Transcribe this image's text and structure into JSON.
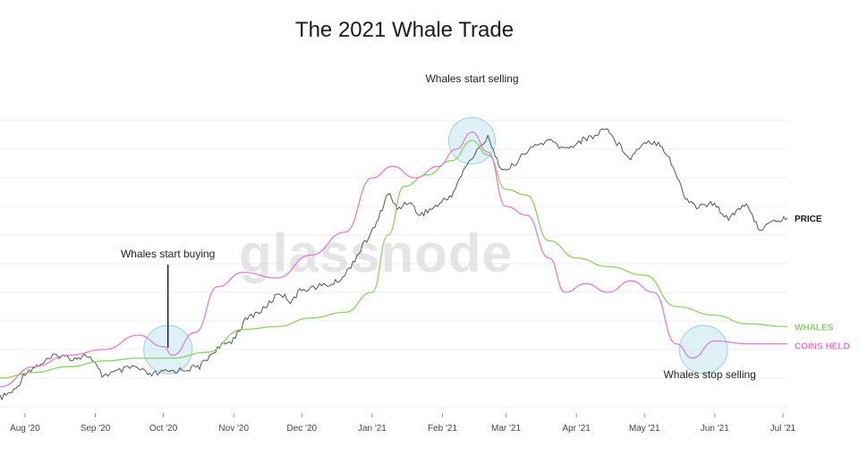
{
  "chart_data": {
    "type": "line",
    "title": "The 2021 Whale Trade",
    "watermark": "glassnode",
    "x_axis": {
      "type": "date",
      "ticks": [
        "Aug '20",
        "Sep '20",
        "Oct '20",
        "Nov '20",
        "Dec '20",
        "Jan '21",
        "Feb '21",
        "Mar '21",
        "Apr '21",
        "May '21",
        "Jun '21",
        "Jul '21"
      ],
      "range": [
        "2020-07-21",
        "2021-07-03"
      ]
    },
    "y_axis": {
      "tick_labels_shown": false,
      "ylim": [
        0,
        100
      ],
      "grid": true
    },
    "series": [
      {
        "name": "PRICE",
        "color": "#555555",
        "points": [
          [
            "2020-07-21",
            3
          ],
          [
            "2020-07-28",
            6
          ],
          [
            "2020-08-01",
            12
          ],
          [
            "2020-08-08",
            15
          ],
          [
            "2020-08-15",
            18
          ],
          [
            "2020-08-22",
            17
          ],
          [
            "2020-08-29",
            18
          ],
          [
            "2020-09-04",
            11
          ],
          [
            "2020-09-10",
            12
          ],
          [
            "2020-09-18",
            14
          ],
          [
            "2020-09-25",
            11
          ],
          [
            "2020-10-01",
            12
          ],
          [
            "2020-10-10",
            13
          ],
          [
            "2020-10-17",
            14
          ],
          [
            "2020-10-24",
            20
          ],
          [
            "2020-10-31",
            23
          ],
          [
            "2020-11-07",
            31
          ],
          [
            "2020-11-14",
            34
          ],
          [
            "2020-11-21",
            40
          ],
          [
            "2020-11-26",
            37
          ],
          [
            "2020-12-01",
            41
          ],
          [
            "2020-12-08",
            42
          ],
          [
            "2020-12-15",
            43
          ],
          [
            "2020-12-20",
            46
          ],
          [
            "2020-12-27",
            55
          ],
          [
            "2021-01-03",
            64
          ],
          [
            "2021-01-08",
            75
          ],
          [
            "2021-01-12",
            69
          ],
          [
            "2021-01-17",
            72
          ],
          [
            "2021-01-22",
            67
          ],
          [
            "2021-01-29",
            70
          ],
          [
            "2021-02-05",
            74
          ],
          [
            "2021-02-12",
            85
          ],
          [
            "2021-02-18",
            91
          ],
          [
            "2021-02-21",
            95
          ],
          [
            "2021-02-25",
            86
          ],
          [
            "2021-03-01",
            82
          ],
          [
            "2021-03-06",
            86
          ],
          [
            "2021-03-13",
            91
          ],
          [
            "2021-03-20",
            93
          ],
          [
            "2021-03-27",
            90
          ],
          [
            "2021-04-03",
            93
          ],
          [
            "2021-04-10",
            95
          ],
          [
            "2021-04-14",
            98
          ],
          [
            "2021-04-18",
            93
          ],
          [
            "2021-04-25",
            87
          ],
          [
            "2021-05-01",
            93
          ],
          [
            "2021-05-08",
            92
          ],
          [
            "2021-05-12",
            87
          ],
          [
            "2021-05-19",
            73
          ],
          [
            "2021-05-24",
            70
          ],
          [
            "2021-05-31",
            71
          ],
          [
            "2021-06-07",
            66
          ],
          [
            "2021-06-14",
            71
          ],
          [
            "2021-06-21",
            62
          ],
          [
            "2021-06-28",
            65
          ],
          [
            "2021-07-03",
            66
          ]
        ]
      },
      {
        "name": "WHALES",
        "color": "#8fd06a",
        "points": [
          [
            "2020-07-21",
            10
          ],
          [
            "2020-08-05",
            12
          ],
          [
            "2020-08-20",
            14
          ],
          [
            "2020-09-05",
            16
          ],
          [
            "2020-09-20",
            17
          ],
          [
            "2020-10-05",
            17
          ],
          [
            "2020-10-20",
            19
          ],
          [
            "2020-11-05",
            27
          ],
          [
            "2020-11-20",
            28
          ],
          [
            "2020-12-05",
            31
          ],
          [
            "2020-12-20",
            33
          ],
          [
            "2021-01-01",
            40
          ],
          [
            "2021-01-08",
            60
          ],
          [
            "2021-01-15",
            77
          ],
          [
            "2021-01-25",
            81
          ],
          [
            "2021-02-05",
            86
          ],
          [
            "2021-02-14",
            93
          ],
          [
            "2021-02-21",
            88
          ],
          [
            "2021-03-01",
            76
          ],
          [
            "2021-03-10",
            74
          ],
          [
            "2021-03-20",
            58
          ],
          [
            "2021-04-01",
            52
          ],
          [
            "2021-04-15",
            49
          ],
          [
            "2021-05-01",
            46
          ],
          [
            "2021-05-15",
            35
          ],
          [
            "2021-06-01",
            32
          ],
          [
            "2021-06-15",
            29
          ],
          [
            "2021-07-03",
            28
          ]
        ]
      },
      {
        "name": "COINS HELD",
        "color": "#e37fcf",
        "points": [
          [
            "2020-07-21",
            7
          ],
          [
            "2020-08-05",
            14
          ],
          [
            "2020-08-20",
            18
          ],
          [
            "2020-09-05",
            20
          ],
          [
            "2020-09-20",
            25
          ],
          [
            "2020-10-01",
            21
          ],
          [
            "2020-10-05",
            18
          ],
          [
            "2020-10-15",
            26
          ],
          [
            "2020-10-25",
            42
          ],
          [
            "2020-11-05",
            47
          ],
          [
            "2020-11-20",
            45
          ],
          [
            "2020-12-05",
            53
          ],
          [
            "2020-12-20",
            61
          ],
          [
            "2021-01-01",
            80
          ],
          [
            "2021-01-10",
            84
          ],
          [
            "2021-01-20",
            80
          ],
          [
            "2021-01-30",
            84
          ],
          [
            "2021-02-07",
            90
          ],
          [
            "2021-02-14",
            96
          ],
          [
            "2021-02-21",
            89
          ],
          [
            "2021-03-01",
            70
          ],
          [
            "2021-03-10",
            67
          ],
          [
            "2021-03-20",
            52
          ],
          [
            "2021-03-27",
            40
          ],
          [
            "2021-04-05",
            43
          ],
          [
            "2021-04-15",
            40
          ],
          [
            "2021-04-25",
            44
          ],
          [
            "2021-05-05",
            40
          ],
          [
            "2021-05-15",
            22
          ],
          [
            "2021-05-22",
            17
          ],
          [
            "2021-06-01",
            23
          ],
          [
            "2021-06-15",
            22
          ],
          [
            "2021-07-03",
            22
          ]
        ]
      }
    ],
    "annotations": [
      {
        "text": "Whales start buying",
        "date": "2020-10-03",
        "value": 20
      },
      {
        "text": "Whales start selling",
        "date": "2021-02-14",
        "value": 93
      },
      {
        "text": "Whales stop selling",
        "date": "2021-05-27",
        "value": 20
      }
    ]
  }
}
